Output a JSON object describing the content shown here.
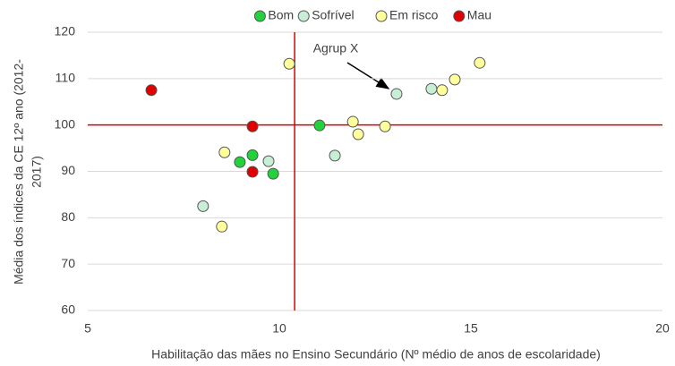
{
  "chart_data": {
    "type": "scatter",
    "xlabel": "Habilitação das mães no Ensino Secundário (Nº médio de anos de escolaridade)",
    "ylabel": [
      "Média dos índices da CE 12º ano (2012-",
      "2017)"
    ],
    "xlim": [
      5,
      20
    ],
    "xticks": [
      5,
      10,
      15,
      20
    ],
    "ylim": [
      60,
      120
    ],
    "yticks": [
      60,
      70,
      80,
      90,
      100,
      110,
      120
    ],
    "grid": true,
    "legend": "top",
    "reference_lines": {
      "x": 10.4,
      "y": 100,
      "color": "#e00000"
    },
    "annotation": "Agrup X",
    "series": [
      {
        "name": "Bom",
        "color": "#22d23a",
        "x": [
          8.97,
          9.3,
          9.84,
          11.05
        ],
        "values": [
          92.0,
          93.5,
          89.5,
          99.9
        ]
      },
      {
        "name": "Sofrível",
        "color": "#c6efd6",
        "x": [
          8.01,
          9.72,
          11.45,
          13.06,
          13.97
        ],
        "values": [
          82.5,
          92.2,
          93.4,
          106.7,
          107.8
        ]
      },
      {
        "name": "Em risco",
        "color": "#ffff9c",
        "x": [
          8.5,
          8.57,
          10.26,
          11.92,
          12.06,
          12.76,
          14.25,
          14.58,
          15.23
        ],
        "values": [
          78.1,
          94.1,
          113.2,
          100.7,
          98.0,
          99.7,
          107.5,
          109.8,
          113.4
        ]
      },
      {
        "name": "Mau",
        "color": "#e00000",
        "x": [
          6.66,
          9.3,
          9.3
        ],
        "values": [
          107.5,
          99.7,
          89.9
        ]
      }
    ]
  }
}
